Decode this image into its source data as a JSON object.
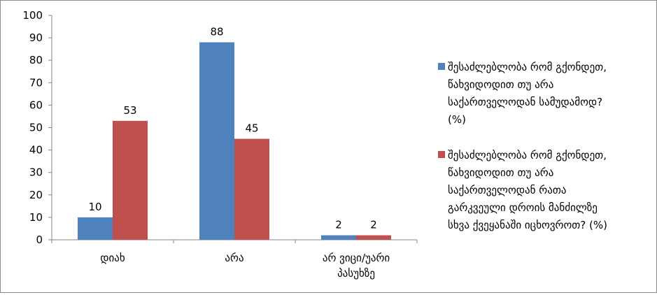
{
  "chart_data": {
    "type": "bar",
    "title": "",
    "xlabel": "",
    "ylabel": "",
    "ylim": [
      0,
      100
    ],
    "yticks": [
      0,
      10,
      20,
      30,
      40,
      50,
      60,
      70,
      80,
      90,
      100
    ],
    "grid": false,
    "legend_position": "right",
    "categories": [
      [
        "დიახ"
      ],
      [
        "არა"
      ],
      [
        "არ ვიცი/უარი",
        "პასუხზე"
      ]
    ],
    "series": [
      {
        "name": [
          "შესაძლებლობა რომ გქონდეთ,",
          "წახვიდოდით თუ არა",
          "საქართველოდან სამუდამოდ?",
          "(%)"
        ],
        "color": "#4F81BD",
        "values": [
          10,
          88,
          2
        ]
      },
      {
        "name": [
          "შესაძლებლობა რომ გქონდეთ,",
          "წახვიდოდით თუ არა",
          "საქართველოდან რათა",
          "გარკვეული დროის მანძილზე",
          "სხვა ქვეყანაში იცხოვროთ? (%)"
        ],
        "color": "#C0504D",
        "values": [
          53,
          45,
          2
        ]
      }
    ]
  }
}
